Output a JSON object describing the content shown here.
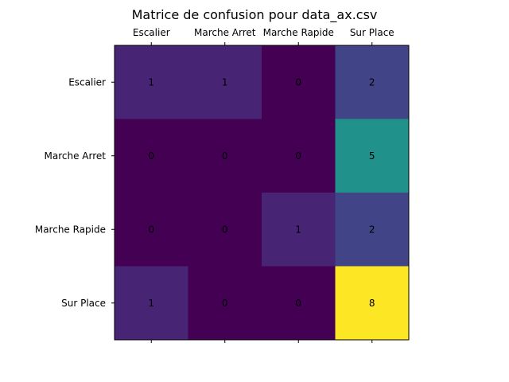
{
  "chart_data": {
    "type": "heatmap",
    "title": "Matrice de confusion pour data_ax.csv",
    "xlabel": "",
    "ylabel": "",
    "x_categories": [
      "Escalier",
      "Marche Arret",
      "Marche Rapide",
      "Sur Place"
    ],
    "y_categories": [
      "Escalier",
      "Marche Arret",
      "Marche Rapide",
      "Sur Place"
    ],
    "values": [
      [
        1,
        1,
        0,
        2
      ],
      [
        0,
        0,
        0,
        5
      ],
      [
        0,
        0,
        1,
        2
      ],
      [
        1,
        0,
        0,
        8
      ]
    ],
    "colormap": "viridis",
    "vmin": 0,
    "vmax": 8,
    "x_tick_position": "top",
    "grid": false
  }
}
